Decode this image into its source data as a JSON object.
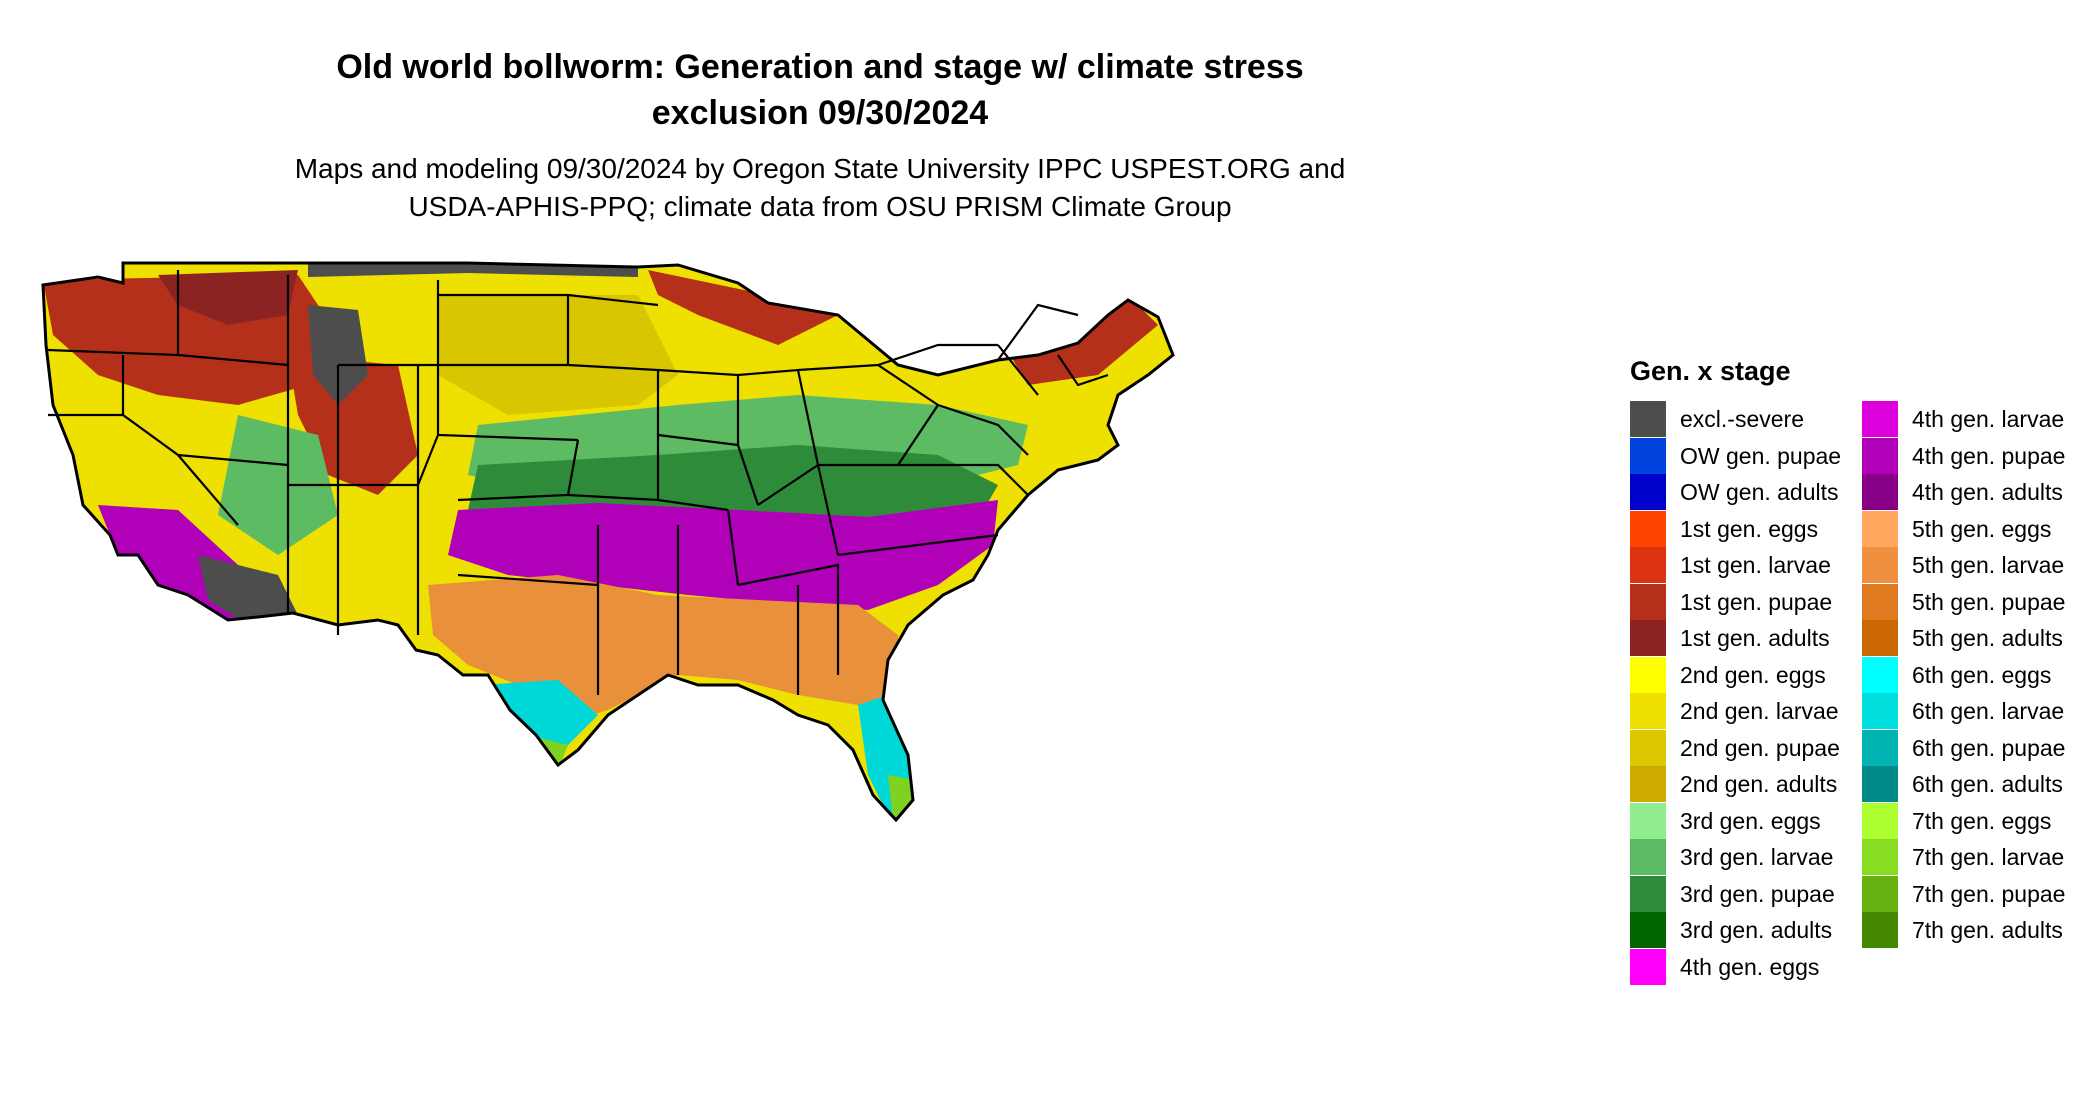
{
  "title_line1": "Old world bollworm: Generation and stage w/ climate stress",
  "title_line2": "exclusion 09/30/2024",
  "subtitle_line1": "Maps and modeling 09/30/2024 by Oregon State University IPPC USPEST.ORG and",
  "subtitle_line2": "USDA-APHIS-PPQ; climate data from OSU PRISM Climate Group",
  "map": {
    "region": "Contiguous United States",
    "zones": [
      {
        "label": "excl.-severe",
        "color": "#4d4d4d"
      },
      {
        "label": "1st gen. pupae",
        "color": "#b5301a"
      },
      {
        "label": "1st gen. adults",
        "color": "#8b2323"
      },
      {
        "label": "2nd gen. larvae",
        "color": "#eee000"
      },
      {
        "label": "2nd gen. pupae",
        "color": "#d8c600"
      },
      {
        "label": "3rd gen. larvae",
        "color": "#5dbb63"
      },
      {
        "label": "3rd gen. pupae",
        "color": "#2e8b3a"
      },
      {
        "label": "4th gen. pupae",
        "color": "#b000b8"
      },
      {
        "label": "5th gen. larvae",
        "color": "#e8913a"
      },
      {
        "label": "6th gen. larvae",
        "color": "#00d8d8"
      },
      {
        "label": "7th gen. larvae",
        "color": "#7ed321"
      }
    ]
  },
  "legend": {
    "title": "Gen. x stage",
    "items": [
      {
        "label": "excl.-severe",
        "color": "#4d4d4d"
      },
      {
        "label": "OW gen. pupae",
        "color": "#0044dd"
      },
      {
        "label": "OW gen. adults",
        "color": "#0000cc"
      },
      {
        "label": "1st gen. eggs",
        "color": "#ff4400"
      },
      {
        "label": "1st gen. larvae",
        "color": "#dd3311"
      },
      {
        "label": "1st gen. pupae",
        "color": "#b5301a"
      },
      {
        "label": "1st gen. adults",
        "color": "#8b2323"
      },
      {
        "label": "2nd gen. eggs",
        "color": "#ffff00"
      },
      {
        "label": "2nd gen. larvae",
        "color": "#eee000"
      },
      {
        "label": "2nd gen. pupae",
        "color": "#dcc800"
      },
      {
        "label": "2nd gen. adults",
        "color": "#ccaa00"
      },
      {
        "label": "3rd gen. eggs",
        "color": "#90ee90"
      },
      {
        "label": "3rd gen. larvae",
        "color": "#5dbb63"
      },
      {
        "label": "3rd gen. pupae",
        "color": "#2e8b3a"
      },
      {
        "label": "3rd gen. adults",
        "color": "#006400"
      },
      {
        "label": "4th gen. eggs",
        "color": "#ff00ff"
      },
      {
        "label": "4th gen. larvae",
        "color": "#dd00dd"
      },
      {
        "label": "4th gen. pupae",
        "color": "#b000b8"
      },
      {
        "label": "4th gen. adults",
        "color": "#880088"
      },
      {
        "label": "5th gen. eggs",
        "color": "#ffa860"
      },
      {
        "label": "5th gen. larvae",
        "color": "#ee9040"
      },
      {
        "label": "5th gen. pupae",
        "color": "#e07a20"
      },
      {
        "label": "5th gen. adults",
        "color": "#cc6600"
      },
      {
        "label": "6th gen. eggs",
        "color": "#00ffff"
      },
      {
        "label": "6th gen. larvae",
        "color": "#00dddd"
      },
      {
        "label": "6th gen. pupae",
        "color": "#00b4b4"
      },
      {
        "label": "6th gen. adults",
        "color": "#008b8b"
      },
      {
        "label": "7th gen. eggs",
        "color": "#adff2f"
      },
      {
        "label": "7th gen. larvae",
        "color": "#88dd22"
      },
      {
        "label": "7th gen. pupae",
        "color": "#66b011"
      },
      {
        "label": "7th gen. adults",
        "color": "#448800"
      }
    ]
  }
}
